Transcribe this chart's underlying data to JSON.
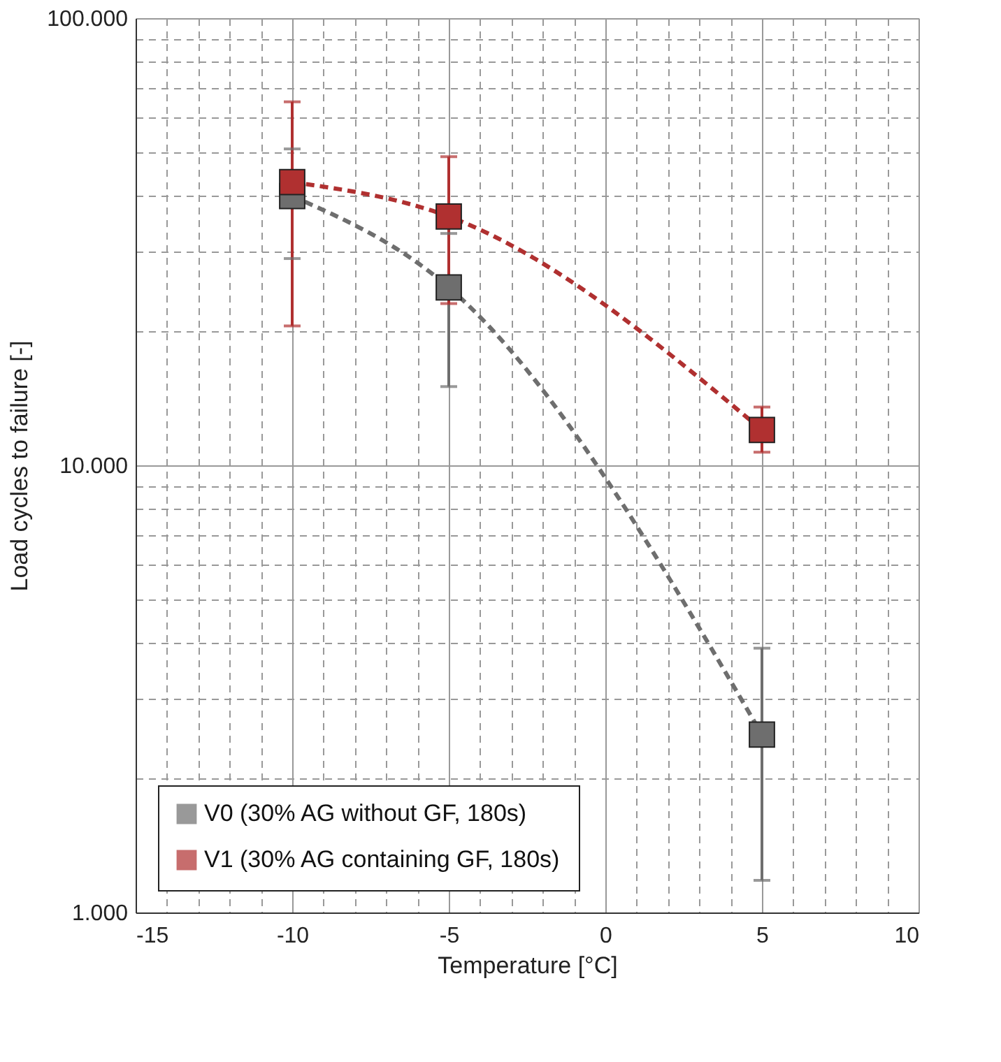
{
  "chart_data": {
    "type": "line",
    "xlabel": "Temperature [°C]",
    "ylabel": "Load cycles to failure [-]",
    "x": [
      -10,
      -5,
      5
    ],
    "series": [
      {
        "name": "V0 (30% AG without GF, 180s)",
        "color": "#6e6e6e",
        "values": [
          40000,
          25000,
          2500
        ],
        "errors": [
          [
            29000,
            51000
          ],
          [
            15000,
            33000
          ],
          [
            1180,
            3900
          ]
        ]
      },
      {
        "name": "V1 (30% AG containing GF, 180s)",
        "color": "#b03030",
        "values": [
          43000,
          36000,
          12000
        ],
        "errors": [
          [
            20500,
            65000
          ],
          [
            23000,
            49000
          ],
          [
            10700,
            13500
          ]
        ]
      }
    ],
    "log": "y",
    "marker": "square",
    "line_style": "dashed",
    "grid": true,
    "legend": "bottom left",
    "xlim": [
      -15,
      10
    ],
    "xticks": [
      -15,
      {
        "value": -14,
        "label": null
      },
      {
        "value": -13,
        "label": null
      },
      {
        "value": -12,
        "label": null
      },
      {
        "value": -11,
        "label": null
      },
      -10,
      {
        "value": -9,
        "label": null
      },
      {
        "value": -8,
        "label": null
      },
      {
        "value": -7,
        "label": null
      },
      {
        "value": -6,
        "label": null
      },
      -5,
      {
        "value": -4,
        "label": null
      },
      {
        "value": -3,
        "label": null
      },
      {
        "value": -2,
        "label": null
      },
      {
        "value": -1,
        "label": null
      },
      0,
      {
        "value": 1,
        "label": null
      },
      {
        "value": 2,
        "label": null
      },
      {
        "value": 3,
        "label": null
      },
      {
        "value": 4,
        "label": null
      },
      5,
      {
        "value": 6,
        "label": null
      },
      {
        "value": 7,
        "label": null
      },
      {
        "value": 8,
        "label": null
      },
      {
        "value": 9,
        "label": null
      },
      10
    ],
    "ylim": [
      1000,
      100000
    ],
    "yticks": [
      {
        "value": 1000,
        "label": "1.000"
      },
      {
        "value": 2000,
        "label": null
      },
      {
        "value": 3000,
        "label": null
      },
      {
        "value": 4000,
        "label": null
      },
      {
        "value": 5000,
        "label": null
      },
      {
        "value": 6000,
        "label": null
      },
      {
        "value": 7000,
        "label": null
      },
      {
        "value": 8000,
        "label": null
      },
      {
        "value": 9000,
        "label": null
      },
      {
        "value": 10000,
        "label": "10.000"
      },
      {
        "value": 20000,
        "label": null
      },
      {
        "value": 30000,
        "label": null
      },
      {
        "value": 40000,
        "label": null
      },
      {
        "value": 50000,
        "label": null
      },
      {
        "value": 60000,
        "label": null
      },
      {
        "value": 70000,
        "label": null
      },
      {
        "value": 80000,
        "label": null
      },
      {
        "value": 90000,
        "label": null
      },
      {
        "value": 100000,
        "label": "100.000"
      }
    ]
  }
}
